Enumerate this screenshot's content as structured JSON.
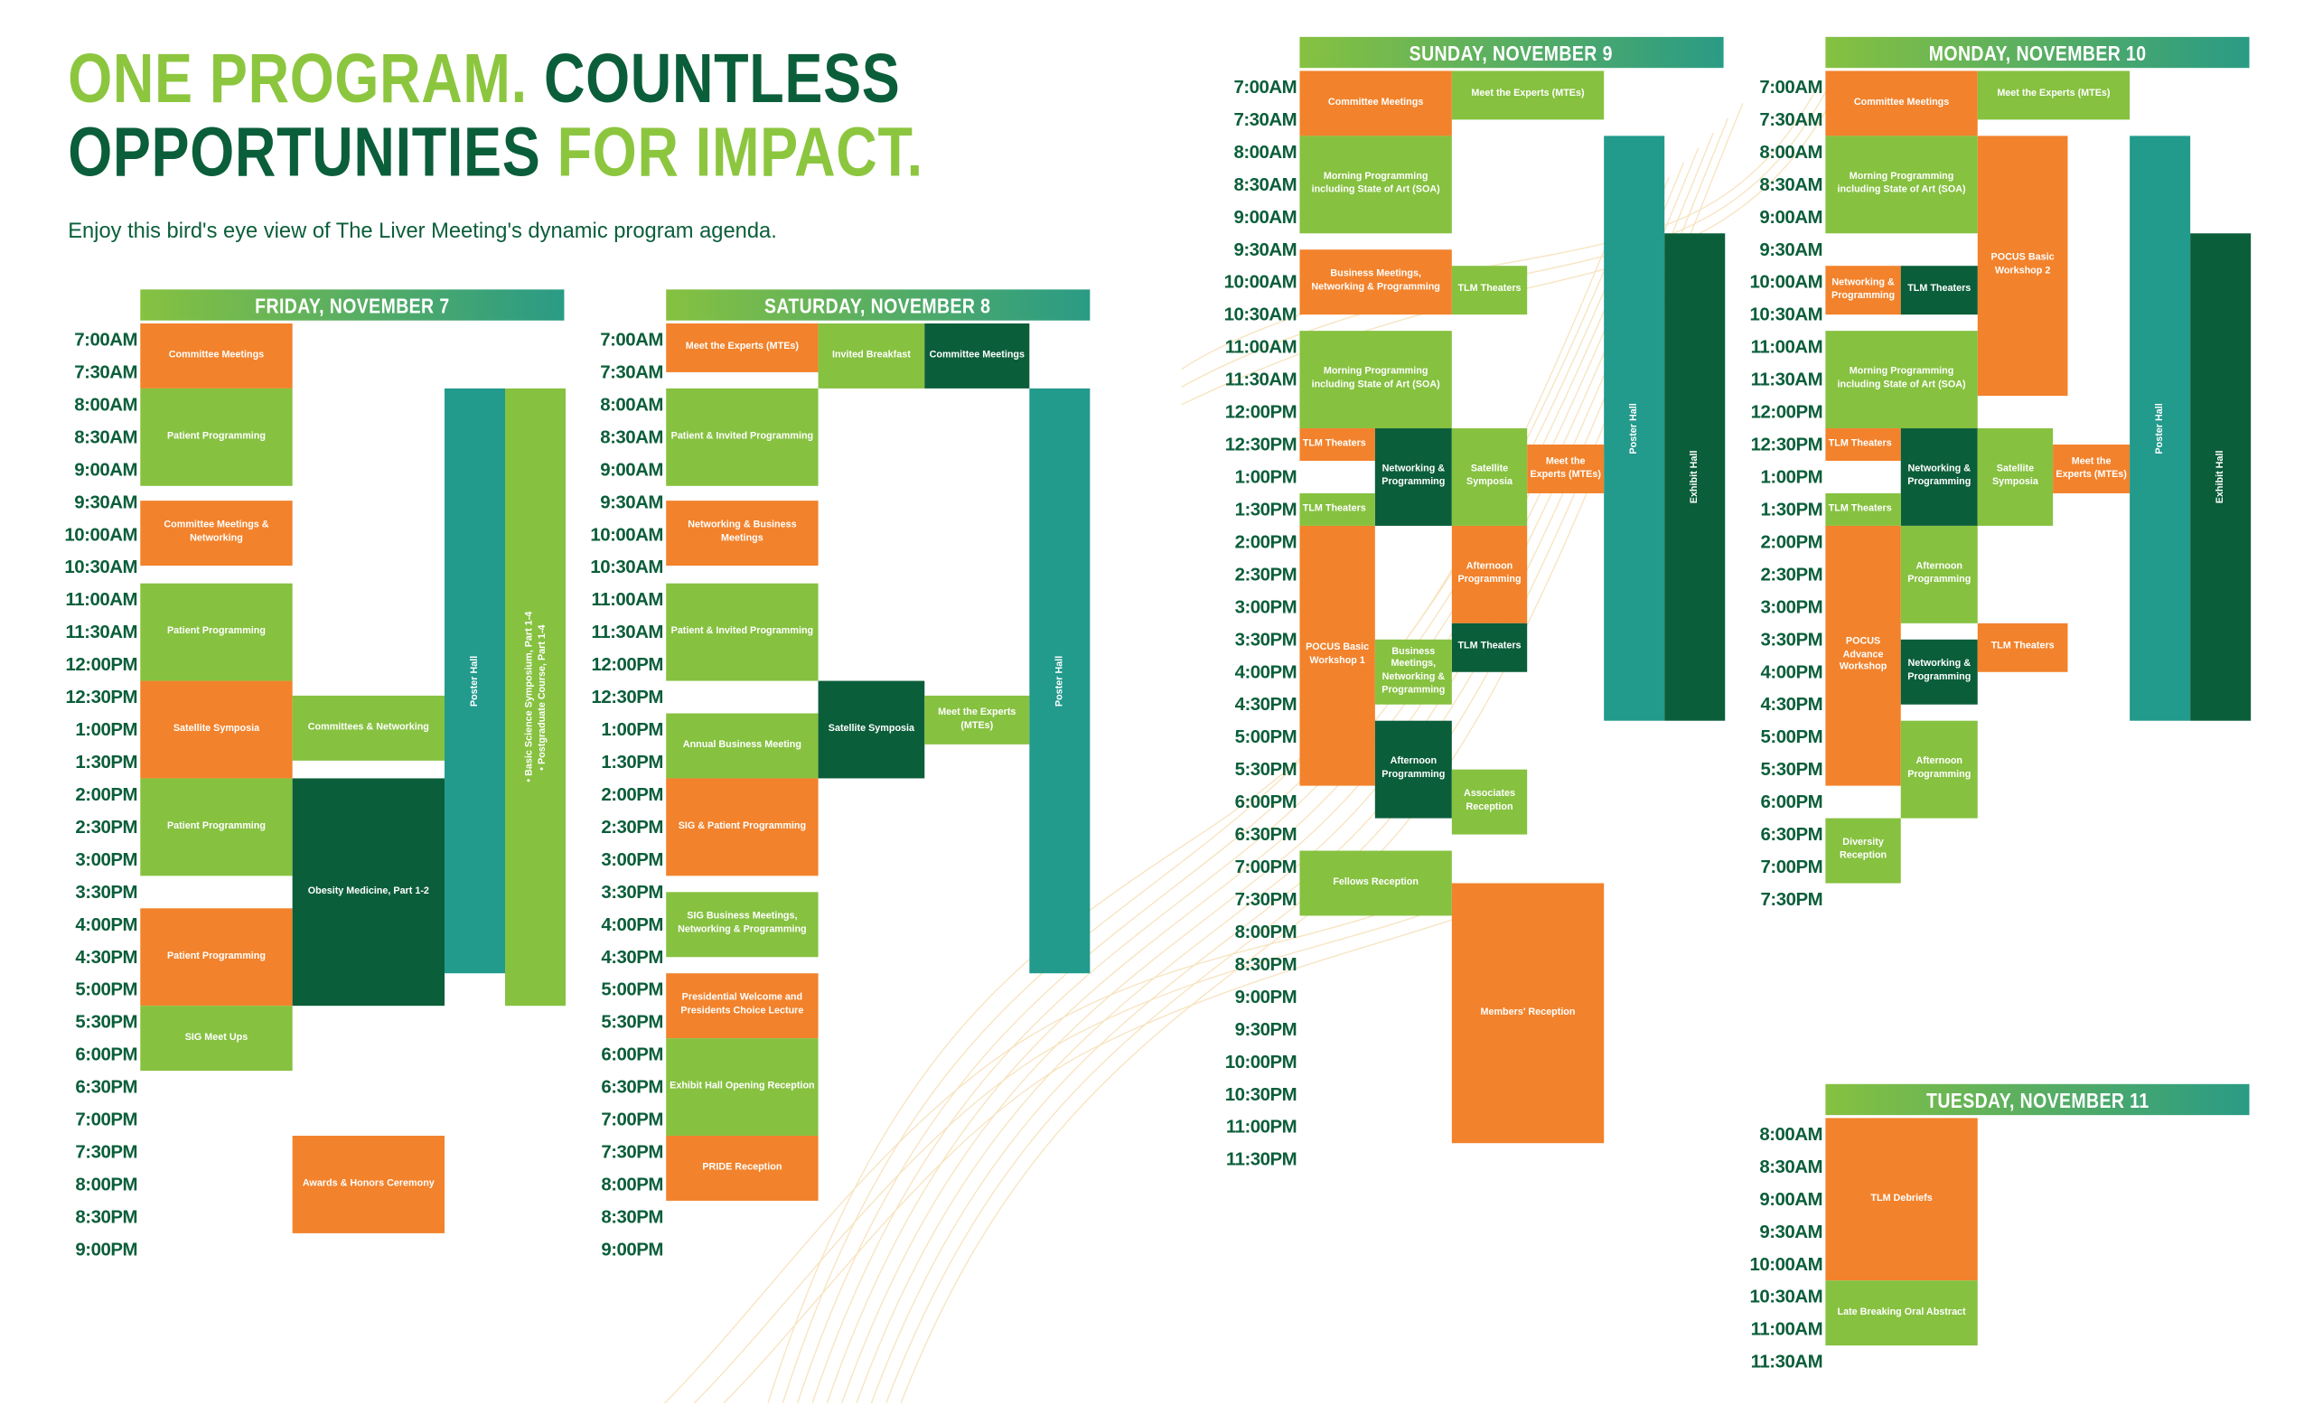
{
  "headline": {
    "p1": "ONE PROGRAM.",
    "p2": "COUNTLESS",
    "p3": "OPPORTUNITIES",
    "p4": "FOR IMPACT."
  },
  "intro": "Enjoy this bird's eye view of The Liver Meeting's dynamic program agenda.",
  "colors": {
    "orange": "#f2822b",
    "light_green": "#86c140",
    "dark_green": "#0b5e3a",
    "teal": "#229a8c"
  },
  "days": {
    "fri": {
      "header": "FRIDAY, NOVEMBER 7",
      "times": [
        "7:00AM",
        "7:30AM",
        "8:00AM",
        "8:30AM",
        "9:00AM",
        "9:30AM",
        "10:00AM",
        "10:30AM",
        "11:00AM",
        "11:30AM",
        "12:00PM",
        "12:30PM",
        "1:00PM",
        "1:30PM",
        "2:00PM",
        "2:30PM",
        "3:00PM",
        "3:30PM",
        "4:00PM",
        "4:30PM",
        "5:00PM",
        "5:30PM",
        "6:00PM",
        "6:30PM",
        "7:00PM",
        "7:30PM",
        "8:00PM",
        "8:30PM",
        "9:00PM"
      ],
      "events": {
        "committee_meetings": "Committee Meetings",
        "patient_prog_1": "Patient Programming",
        "committee_networking": "Committee Meetings & Networking",
        "patient_prog_2": "Patient Programming",
        "satellite_symposia": "Satellite Symposia",
        "patient_prog_3": "Patient Programming",
        "patient_prog_4": "Patient Programming",
        "sig_meet_ups": "SIG Meet Ups",
        "committees_networking": "Committees & Networking",
        "obesity_medicine": "Obesity Medicine, Part 1-2",
        "awards_ceremony": "Awards & Honors Ceremony",
        "poster_hall": "Poster Hall",
        "symposium_line1": "• Basic Science Symposium, Part 1-4",
        "symposium_line2": "• Postgraduate Course, Part 1-4"
      }
    },
    "sat": {
      "header": "SATURDAY, NOVEMBER 8",
      "times": [
        "7:00AM",
        "7:30AM",
        "8:00AM",
        "8:30AM",
        "9:00AM",
        "9:30AM",
        "10:00AM",
        "10:30AM",
        "11:00AM",
        "11:30AM",
        "12:00PM",
        "12:30PM",
        "1:00PM",
        "1:30PM",
        "2:00PM",
        "2:30PM",
        "3:00PM",
        "3:30PM",
        "4:00PM",
        "4:30PM",
        "5:00PM",
        "5:30PM",
        "6:00PM",
        "6:30PM",
        "7:00PM",
        "7:30PM",
        "8:00PM",
        "8:30PM",
        "9:00PM"
      ],
      "events": {
        "meet_experts": "Meet the Experts (MTEs)",
        "invited_breakfast": "Invited Breakfast",
        "committee_meetings": "Committee Meetings",
        "patient_invited_1": "Patient & Invited Programming",
        "networking_business": "Networking & Business Meetings",
        "patient_invited_2": "Patient & Invited Programming",
        "annual_business": "Annual Business Meeting",
        "satellite_symposia": "Satellite Symposia",
        "meet_experts_2": "Meet the Experts (MTEs)",
        "sig_patient": "SIG & Patient Programming",
        "sig_business": "SIG Business Meetings, Networking & Programming",
        "presidential": "Presidential Welcome and Presidents Choice Lecture",
        "exhibit_opening": "Exhibit Hall Opening Reception",
        "pride_reception": "PRIDE Reception",
        "poster_hall": "Poster Hall"
      }
    },
    "sun": {
      "header": "SUNDAY, NOVEMBER 9",
      "times": [
        "7:00AM",
        "7:30AM",
        "8:00AM",
        "8:30AM",
        "9:00AM",
        "9:30AM",
        "10:00AM",
        "10:30AM",
        "11:00AM",
        "11:30AM",
        "12:00PM",
        "12:30PM",
        "1:00PM",
        "1:30PM",
        "2:00PM",
        "2:30PM",
        "3:00PM",
        "3:30PM",
        "4:00PM",
        "4:30PM",
        "5:00PM",
        "5:30PM",
        "6:00PM",
        "6:30PM",
        "7:00PM",
        "7:30PM",
        "8:00PM",
        "8:30PM",
        "9:00PM",
        "9:30PM",
        "10:00PM",
        "10:30PM",
        "11:00PM",
        "11:30PM"
      ],
      "events": {
        "committee_meetings": "Committee Meetings",
        "meet_experts": "Meet the Experts (MTEs)",
        "morning_prog_1": "Morning Programming including State of Art (SOA)",
        "business_networking": "Business Meetings, Networking & Programming",
        "tlm_theaters_1": "TLM Theaters",
        "morning_prog_2": "Morning Programming including State of Art (SOA)",
        "tlm_theaters_2": "TLM Theaters",
        "networking_prog": "Networking & Programming",
        "satellite_symposia": "Satellite Symposia",
        "meet_experts_2": "Meet the Experts (MTEs)",
        "tlm_theaters_3": "TLM Theaters",
        "pocus_basic": "POCUS Basic Workshop 1",
        "afternoon_prog_1": "Afternoon Programming",
        "tlm_theaters_4": "TLM Theaters",
        "business_networking_2": "Business Meetings, Networking & Programming",
        "afternoon_prog_2": "Afternoon Programming",
        "associates_reception": "Associates Reception",
        "fellows_reception": "Fellows Reception",
        "members_reception": "Members' Reception",
        "poster_hall": "Poster Hall",
        "exhibit_hall": "Exhibit Hall"
      }
    },
    "mon": {
      "header": "MONDAY, NOVEMBER 10",
      "times": [
        "7:00AM",
        "7:30AM",
        "8:00AM",
        "8:30AM",
        "9:00AM",
        "9:30AM",
        "10:00AM",
        "10:30AM",
        "11:00AM",
        "11:30AM",
        "12:00PM",
        "12:30PM",
        "1:00PM",
        "1:30PM",
        "2:00PM",
        "2:30PM",
        "3:00PM",
        "3:30PM",
        "4:00PM",
        "4:30PM",
        "5:00PM",
        "5:30PM",
        "6:00PM",
        "6:30PM",
        "7:00PM",
        "7:30PM"
      ],
      "events": {
        "committee_meetings": "Committee Meetings",
        "meet_experts": "Meet the Experts (MTEs)",
        "morning_prog_1": "Morning Programming including State of Art (SOA)",
        "pocus_basic_2": "POCUS Basic Workshop 2",
        "networking_prog_1": "Networking & Programming",
        "tlm_theaters_1": "TLM Theaters",
        "morning_prog_2": "Morning Programming including State of Art (SOA)",
        "tlm_theaters_2": "TLM Theaters",
        "networking_prog_2": "Networking & Programming",
        "satellite_symposia": "Satellite Symposia",
        "meet_experts_2": "Meet the Experts (MTEs)",
        "tlm_theaters_3": "TLM Theaters",
        "pocus_advance": "POCUS Advance Workshop",
        "afternoon_prog_1": "Afternoon Programming",
        "networking_prog_3": "Networking & Programming",
        "tlm_theaters_4": "TLM Theaters",
        "afternoon_prog_2": "Afternoon Programming",
        "diversity_reception": "Diversity Reception",
        "poster_hall": "Poster Hall",
        "exhibit_hall": "Exhibit Hall"
      }
    },
    "tue": {
      "header": "TUESDAY, NOVEMBER 11",
      "times": [
        "8:00AM",
        "8:30AM",
        "9:00AM",
        "9:30AM",
        "10:00AM",
        "10:30AM",
        "11:00AM",
        "11:30AM"
      ],
      "events": {
        "tlm_debriefs": "TLM Debriefs",
        "late_breaking": "Late Breaking Oral Abstract"
      }
    }
  }
}
